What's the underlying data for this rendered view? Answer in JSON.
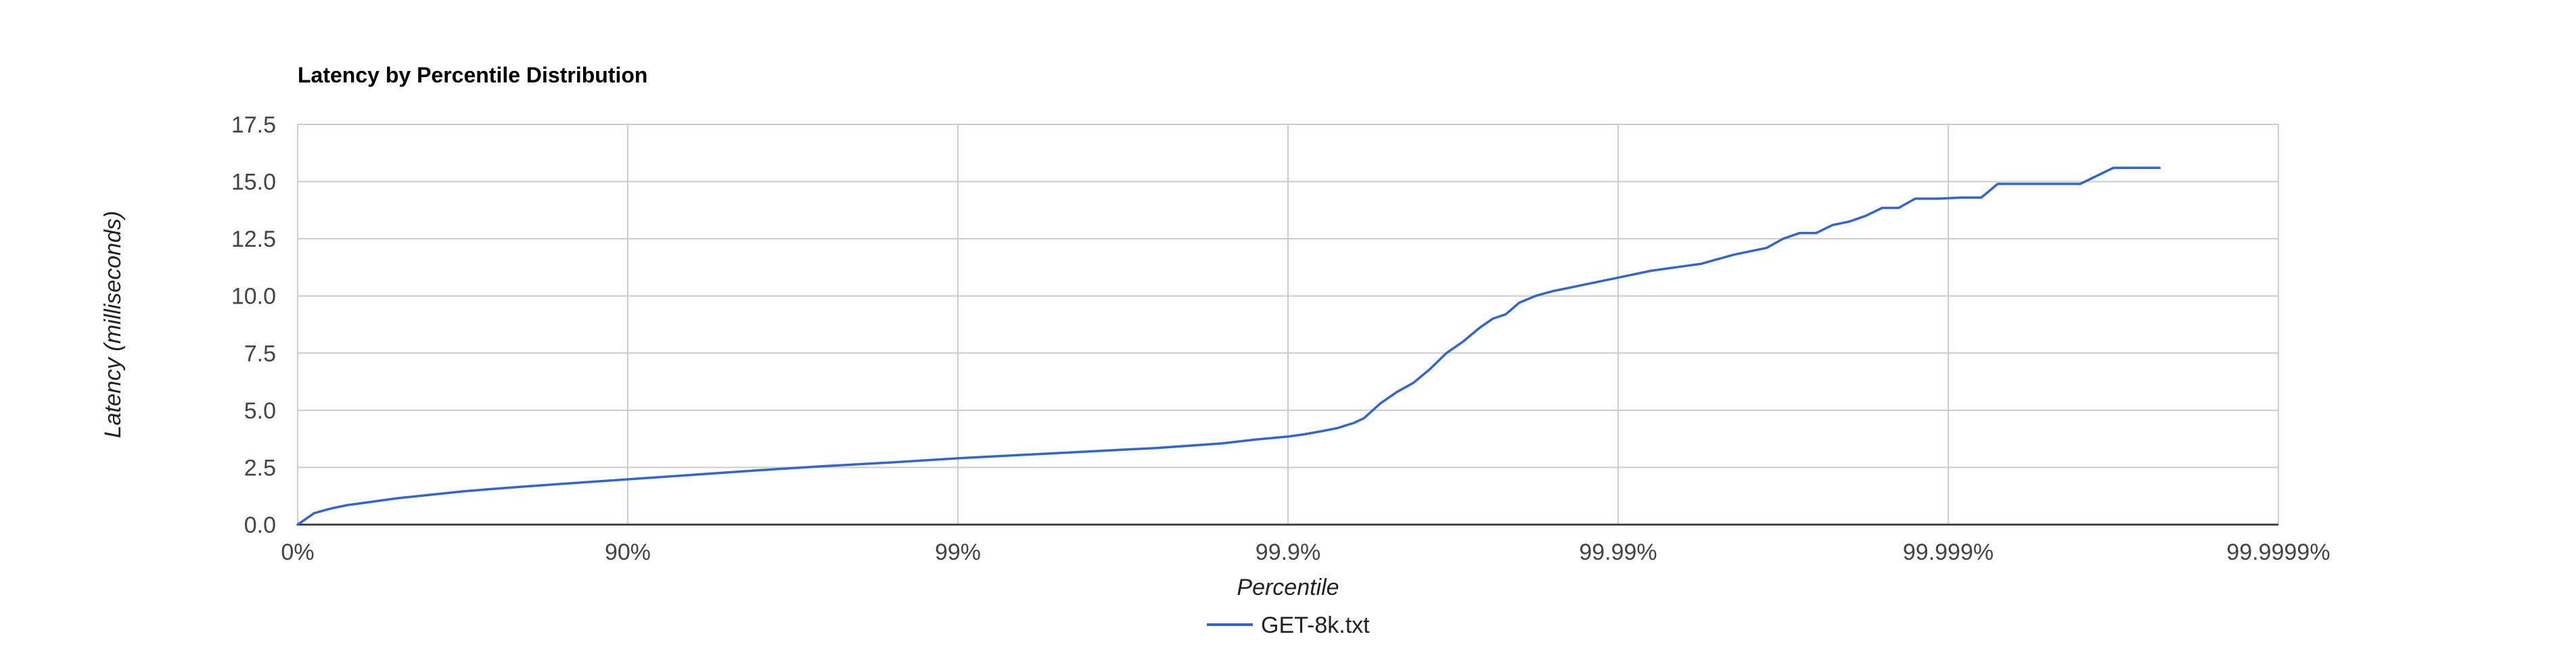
{
  "chart_data": {
    "type": "line",
    "title": "Latency by Percentile Distribution",
    "xlabel": "Percentile",
    "ylabel": "Latency (milliseconds)",
    "x_scale": "log-nines",
    "x_ticks": [
      "0%",
      "90%",
      "99%",
      "99.9%",
      "99.99%",
      "99.999%",
      "99.9999%"
    ],
    "x_range": [
      0,
      6
    ],
    "y_ticks": [
      "0.0",
      "2.5",
      "5.0",
      "7.5",
      "10.0",
      "12.5",
      "15.0",
      "17.5"
    ],
    "ylim": [
      0,
      17.5
    ],
    "grid": true,
    "legend_position": "bottom",
    "series": [
      {
        "name": "GET-8k.txt",
        "color": "#3366cc",
        "x": [
          0,
          0.05,
          0.1,
          0.15,
          0.2,
          0.3,
          0.4,
          0.5,
          0.6,
          0.7,
          0.8,
          0.9,
          1.0,
          1.2,
          1.4,
          1.6,
          1.8,
          2.0,
          2.2,
          2.4,
          2.6,
          2.8,
          2.9,
          3.0,
          3.05,
          3.1,
          3.15,
          3.2,
          3.23,
          3.28,
          3.33,
          3.38,
          3.43,
          3.48,
          3.53,
          3.58,
          3.62,
          3.66,
          3.7,
          3.75,
          3.8,
          3.85,
          3.9,
          4.0,
          4.1,
          4.2,
          4.25,
          4.3,
          4.35,
          4.4,
          4.45,
          4.5,
          4.55,
          4.6,
          4.65,
          4.7,
          4.75,
          4.8,
          4.85,
          4.9,
          4.97,
          5.04,
          5.1,
          5.15,
          5.21,
          5.27,
          5.33,
          5.4,
          5.5,
          5.57,
          5.64
        ],
        "y": [
          0.0,
          0.5,
          0.7,
          0.85,
          0.95,
          1.15,
          1.3,
          1.45,
          1.57,
          1.68,
          1.78,
          1.88,
          1.98,
          2.18,
          2.38,
          2.56,
          2.72,
          2.9,
          3.05,
          3.2,
          3.35,
          3.55,
          3.72,
          3.85,
          3.95,
          4.08,
          4.22,
          4.45,
          4.65,
          5.3,
          5.8,
          6.2,
          6.8,
          7.5,
          8.0,
          8.6,
          9.0,
          9.2,
          9.7,
          10.0,
          10.2,
          10.35,
          10.5,
          10.8,
          11.1,
          11.3,
          11.4,
          11.6,
          11.8,
          11.95,
          12.1,
          12.5,
          12.75,
          12.75,
          13.1,
          13.25,
          13.5,
          13.85,
          13.85,
          14.25,
          14.25,
          14.3,
          14.3,
          14.9,
          14.9,
          14.9,
          14.9,
          14.9,
          15.6,
          15.6,
          15.6
        ]
      }
    ]
  }
}
